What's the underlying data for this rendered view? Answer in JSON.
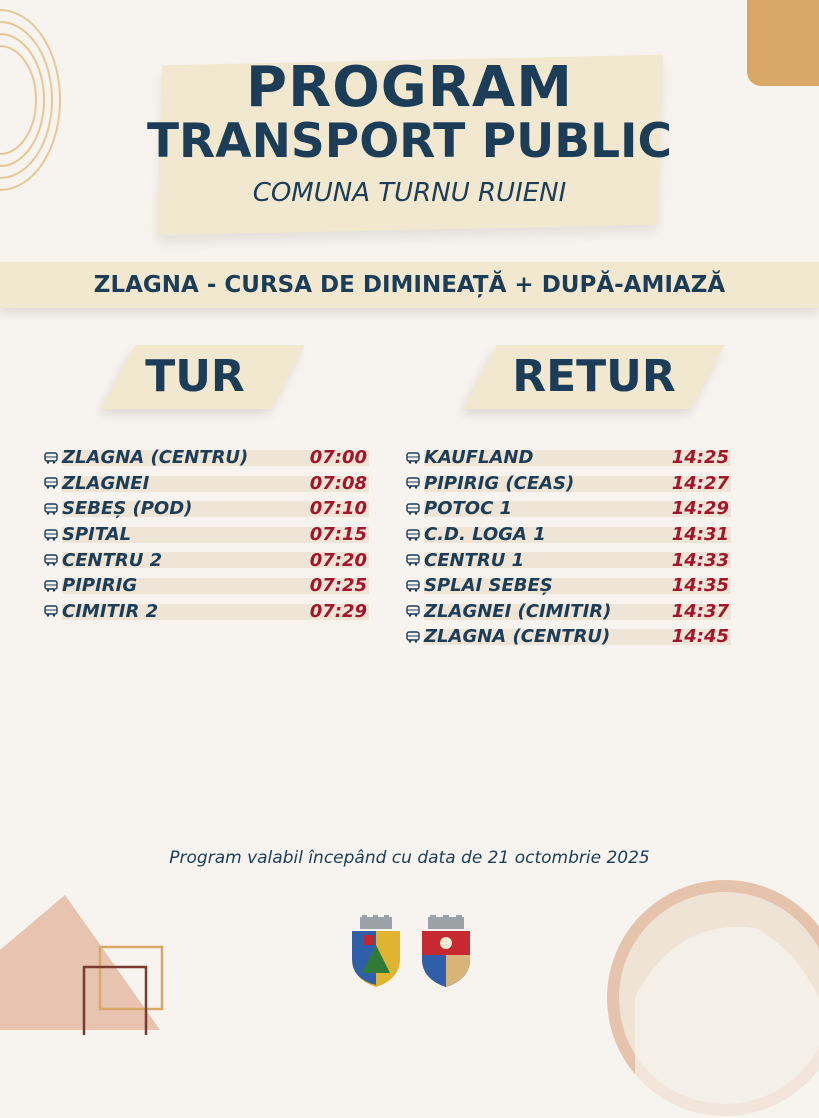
{
  "header": {
    "title_line1": "PROGRAM",
    "title_line2": "TRANSPORT PUBLIC",
    "subtitle": "COMUNA TURNU RUIENI"
  },
  "route_banner": "ZLAGNA - CURSA DE DIMINEAȚĂ + DUPĂ-AMIAZĂ",
  "tur": {
    "label": "TUR",
    "stops": [
      {
        "name": "ZLAGNA (CENTRU)",
        "time": "07:00"
      },
      {
        "name": "ZLAGNEI",
        "time": "07:08"
      },
      {
        "name": "SEBEȘ (POD)",
        "time": "07:10"
      },
      {
        "name": "SPITAL",
        "time": "07:15"
      },
      {
        "name": "CENTRU 2",
        "time": "07:20"
      },
      {
        "name": "PIPIRIG",
        "time": "07:25"
      },
      {
        "name": "CIMITIR 2",
        "time": "07:29"
      }
    ]
  },
  "retur": {
    "label": "RETUR",
    "stops": [
      {
        "name": "KAUFLAND",
        "time": "14:25"
      },
      {
        "name": "PIPIRIG (CEAS)",
        "time": "14:27"
      },
      {
        "name": "POTOC 1",
        "time": "14:29"
      },
      {
        "name": "C.D. LOGA 1",
        "time": "14:31"
      },
      {
        "name": "CENTRU 1",
        "time": "14:33"
      },
      {
        "name": "SPLAI SEBEȘ",
        "time": "14:35"
      },
      {
        "name": "ZLAGNEI (CIMITIR)",
        "time": "14:37"
      },
      {
        "name": "ZLAGNA (CENTRU)",
        "time": "14:45"
      }
    ]
  },
  "footer_note": "Program valabil începând cu data de 21 octombrie 2025",
  "icons": {
    "stop_marker": "bus-icon",
    "crests": [
      "commune-crest-icon",
      "county-crest-icon"
    ]
  },
  "colors": {
    "navy": "#1b3d58",
    "time_red": "#a4152b",
    "beige": "#f2e7cf",
    "background": "#f7f3ee",
    "accent_gold": "#d9a866"
  }
}
